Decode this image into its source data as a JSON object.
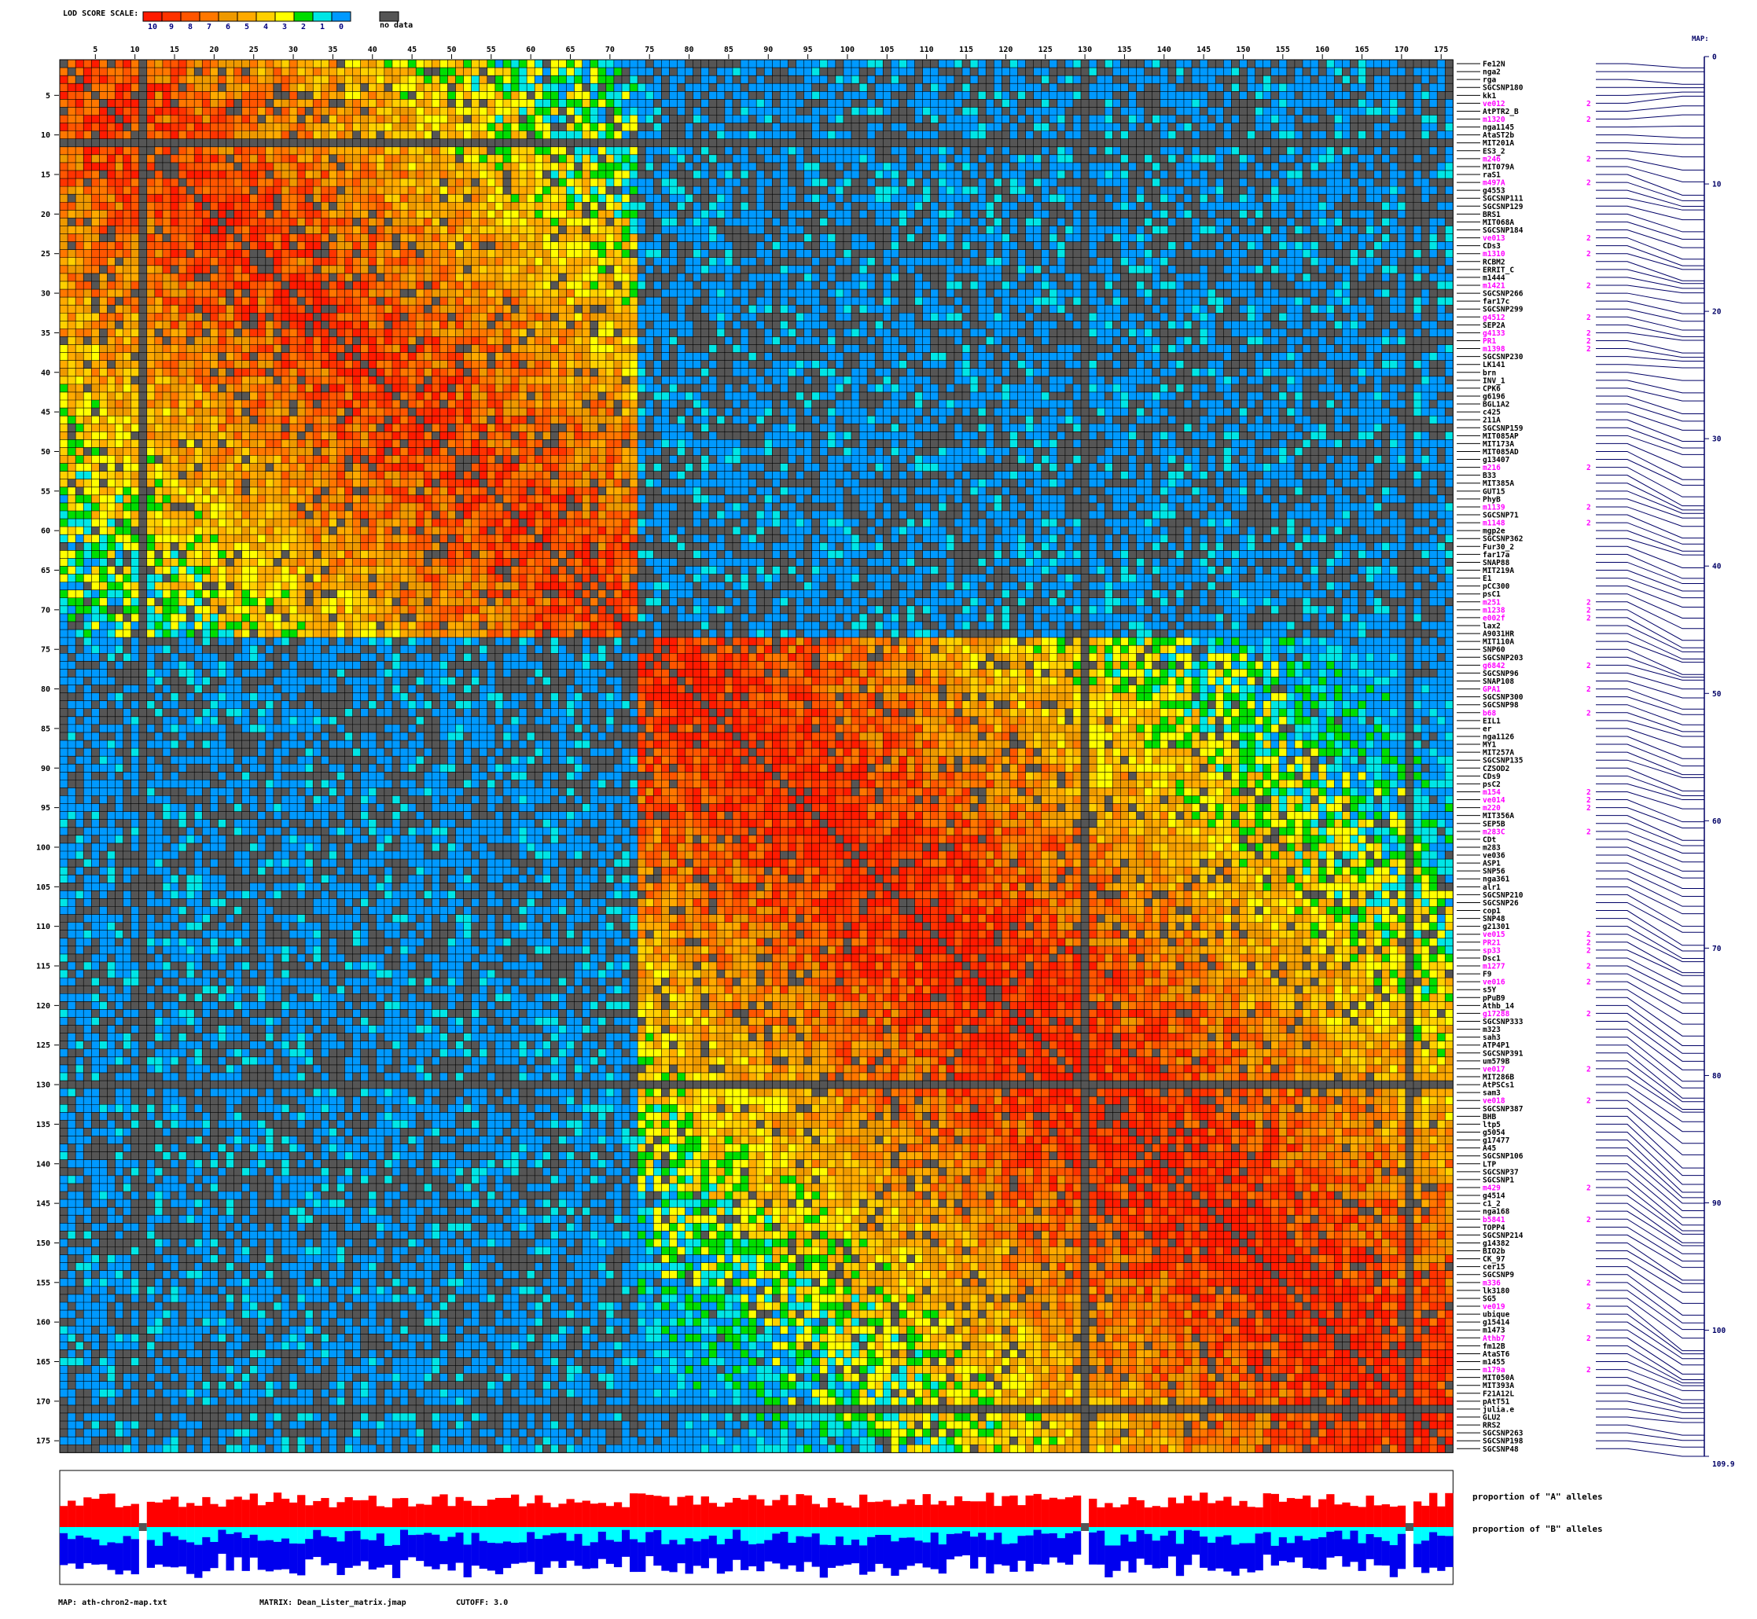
{
  "scale": {
    "title": "LOD SCORE SCALE:",
    "levels": [
      "10",
      "9",
      "8",
      "7",
      "6",
      "5",
      "4",
      "3",
      "2",
      "1",
      "0"
    ],
    "level_colors": [
      "#ff1a00",
      "#ff3300",
      "#ff5500",
      "#ff7700",
      "#ee9900",
      "#ffaa00",
      "#ffd000",
      "#ffff00",
      "#00dd00",
      "#00e6e6",
      "#0099ff"
    ],
    "nodata_label": "no data",
    "nodata_color": "#555555"
  },
  "map_title": "MAP:",
  "footer": {
    "map": "MAP: ath-chron2-map.txt",
    "matrix": "MATRIX: Dean_Lister_matrix.jmap",
    "cutoff": "CUTOFF: 3.0"
  },
  "allele_labels": {
    "a": "proportion of \"A\" alleles",
    "b": "proportion of \"B\" alleles"
  },
  "colors": {
    "a_allele": "#ff0000",
    "b_allele": "#0000ee",
    "het": "#00ffff",
    "a_extra": "#ffff00",
    "nodata_column": "#555555",
    "grid_line": "#000000",
    "marker_text": "#000000",
    "marker_text_flagged": "#ff00ff",
    "map_line": "#000066"
  },
  "chart_data": {
    "type": "heatmap",
    "title": "LOD SCORE SCALE:",
    "n_markers": 176,
    "x_tick_labels": [
      "5",
      "10",
      "15",
      "20",
      "25",
      "30",
      "35",
      "40",
      "45",
      "50",
      "55",
      "60",
      "65",
      "70",
      "75",
      "80",
      "85",
      "90",
      "95",
      "100",
      "105",
      "110",
      "115",
      "120",
      "125",
      "130",
      "135",
      "140",
      "145",
      "150",
      "155",
      "160",
      "165",
      "170",
      "175"
    ],
    "y_tick_labels": [
      "5",
      "10",
      "15",
      "20",
      "25",
      "30",
      "35",
      "40",
      "45",
      "50",
      "55",
      "60",
      "65",
      "70",
      "75",
      "80",
      "85",
      "90",
      "95",
      "100",
      "105",
      "110",
      "115",
      "120",
      "125",
      "130",
      "135",
      "140",
      "145",
      "150",
      "155",
      "160",
      "165",
      "170",
      "175"
    ],
    "linkage_blocks": [
      {
        "markers": [
          1,
          73
        ],
        "core_lod": 8
      },
      {
        "markers": [
          74,
          176
        ],
        "core_lod": 9
      }
    ],
    "missing_markers": [
      11,
      130,
      171
    ],
    "markers": [
      "Fe12N",
      "nga2",
      "rga",
      "SGCSNP180",
      "kk1",
      "ve012",
      "AtPTR2_B",
      "m1320",
      "nga1145",
      "AtaST2b",
      "MIT201A",
      "ES3_2",
      "m246",
      "MIT079A",
      "raS1",
      "m497A",
      "g4553",
      "SGCSNP111",
      "SGCSNP129",
      "BRS1",
      "MIT068A",
      "SGCSNP184",
      "ve013",
      "CDs3",
      "m1310",
      "RCBM2",
      "ERRIT_C",
      "m1444",
      "m1421",
      "SGCSNP266",
      "far17c",
      "SGCSNP299",
      "g4512",
      "SEP2A",
      "g4133",
      "PR1",
      "m1398",
      "SGCSNP230",
      "LK141",
      "brn",
      "INV_1",
      "CPK6",
      "g6196",
      "BGL1A2",
      "c425",
      "211A",
      "SGCSNP159",
      "MIT085AP",
      "MIT173A",
      "MIT085AD",
      "g13407",
      "m216",
      "B33",
      "MIT385A",
      "GUT15",
      "PhyB",
      "m1139",
      "SGCSNP71",
      "m1148",
      "mgp2e",
      "SGCSNP362",
      "Fur30_2",
      "far17a",
      "SNAP88",
      "MIT219A",
      "E1",
      "pCC300",
      "psC1",
      "m251",
      "m1238",
      "e002f",
      "lax2",
      "A9031HR",
      "MIT110A",
      "SNP60",
      "SGCSNP203",
      "g6842",
      "SGCSNP96",
      "SNAP108",
      "GPA1",
      "SGCSNP300",
      "SGCSNP98",
      "b68",
      "EIL1",
      "er",
      "nga1126",
      "MY1",
      "MIT257A",
      "SGCSNP135",
      "CZSOD2",
      "CDs9",
      "psC2",
      "m154",
      "ve014",
      "m220",
      "MIT356A",
      "SEP5B",
      "m283C",
      "CDt",
      "m283",
      "ve036",
      "ASP1",
      "SNP56",
      "nga361",
      "alr1",
      "SGCSNP210",
      "SGCSNP26",
      "cop1",
      "SNP48",
      "g21301",
      "ve015",
      "PR21",
      "sp33",
      "Dsc1",
      "m1277",
      "F9",
      "ve016",
      "s5Y",
      "pPuB9",
      "Athb_14",
      "g17288",
      "SGCSNP333",
      "m323",
      "sah3",
      "ATP4P1",
      "SGCSNP391",
      "um579B",
      "ve017",
      "MIT286B",
      "AtPSCs1",
      "sam3",
      "ve018",
      "SGCSNP387",
      "BHB",
      "ltp5",
      "g5054",
      "g17477",
      "A45",
      "SGCSNP106",
      "LTP",
      "SGCSNP37",
      "SGCSNP1",
      "m429",
      "g4514",
      "c1_2",
      "nga168",
      "b5841",
      "TOPP4",
      "SGCSNP214",
      "g14382",
      "BIO2b",
      "CK_97",
      "cer15",
      "SGCSNP9",
      "m336",
      "lk3180",
      "SG5",
      "ve019",
      "ubique",
      "g15414",
      "m1473",
      "Athb7",
      "fm12B",
      "AtaST6",
      "m1455",
      "m179a",
      "MIT050A",
      "MIT393A",
      "F21A12L",
      "pAtT51",
      "julia.e",
      "GLU2",
      "RRS2",
      "SGCSNP263",
      "SGCSNP198",
      "SGCSNP48"
    ],
    "flagged_markers": [
      6,
      8,
      13,
      16,
      23,
      25,
      29,
      33,
      35,
      36,
      37,
      52,
      57,
      59,
      69,
      70,
      71,
      77,
      80,
      83,
      93,
      94,
      95,
      98,
      111,
      112,
      113,
      115,
      117,
      121,
      128,
      132,
      143,
      147,
      155,
      158,
      162,
      166
    ],
    "flag_value": "2",
    "map_axis": {
      "label": "MAP:",
      "ticks": [
        0,
        10,
        20,
        30,
        40,
        50,
        60,
        70,
        80,
        90,
        100
      ],
      "max": 109.9,
      "max_label": "109.9"
    }
  }
}
